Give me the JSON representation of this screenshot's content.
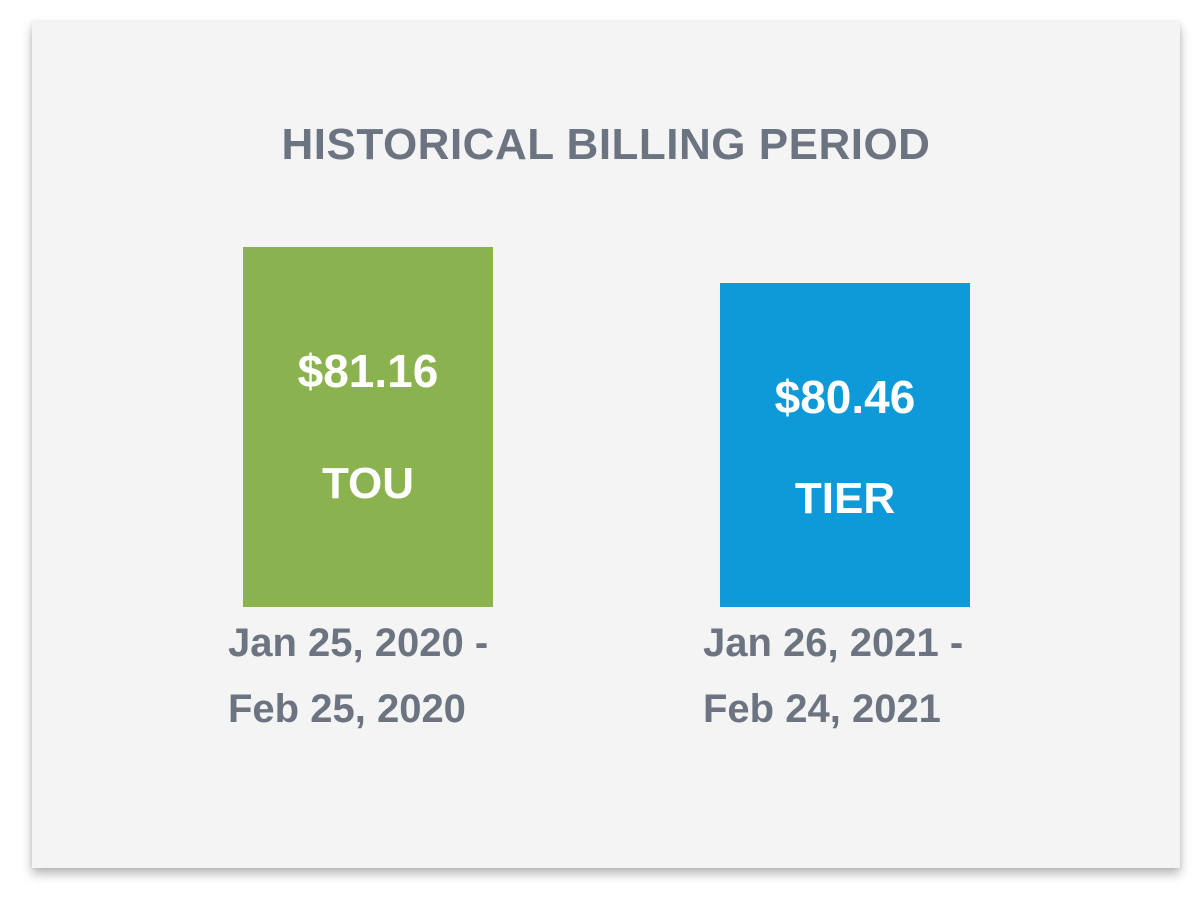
{
  "card": {
    "title": "HISTORICAL BILLING PERIOD"
  },
  "chart_data": {
    "type": "bar",
    "title": "HISTORICAL BILLING PERIOD",
    "categories": [
      "TOU",
      "TIER"
    ],
    "values": [
      81.16,
      80.46
    ],
    "value_labels": [
      "$81.16",
      "$80.46"
    ],
    "periods": [
      {
        "start": "Jan 25, 2020 -",
        "end": "Feb 25, 2020"
      },
      {
        "start": "Jan 26, 2021 -",
        "end": "Feb 24, 2021"
      }
    ],
    "colors": [
      "#8ab34f",
      "#0e9ad8"
    ],
    "ylim": [
      80.0,
      81.16
    ]
  }
}
